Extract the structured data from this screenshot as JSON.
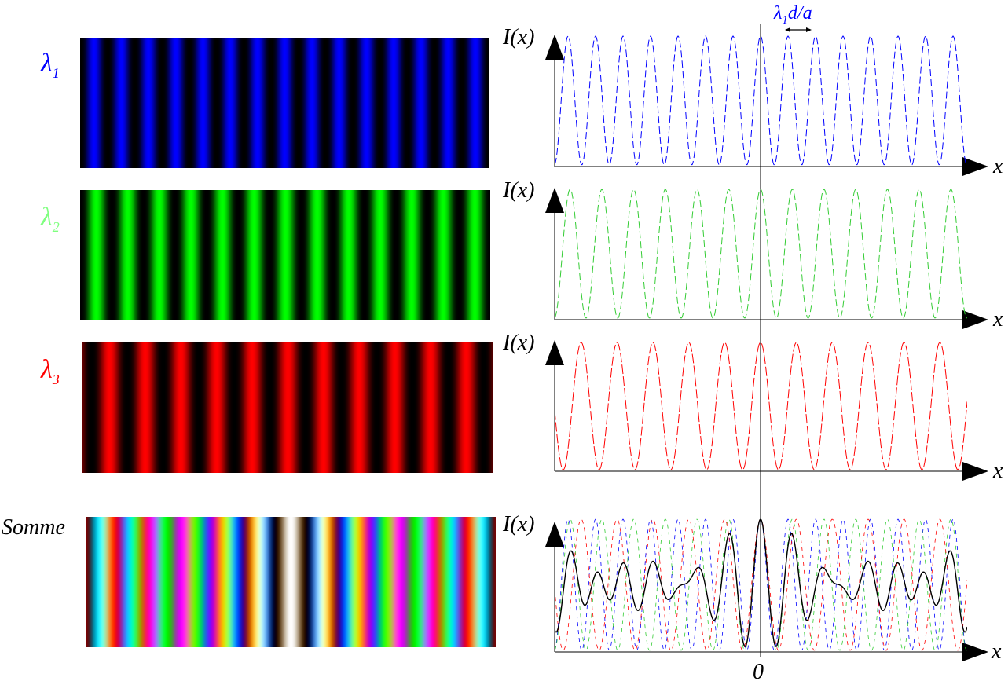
{
  "rows": [
    {
      "key": "lambda1",
      "symbol": "λ",
      "subscript": "1",
      "color": "#0000ff",
      "fringe_periods": 15.0
    },
    {
      "key": "lambda2",
      "symbol": "λ",
      "subscript": "2",
      "color": "#00ff00",
      "fringe_periods": 13.0
    },
    {
      "key": "lambda3",
      "symbol": "λ",
      "subscript": "3",
      "color": "#ff0000",
      "fringe_periods": 11.5
    }
  ],
  "sum": {
    "label": "Somme"
  },
  "plot": {
    "ylabel": "I(x)",
    "xlabel": "x",
    "origin_label": "0",
    "fringe_spacing_label_main": "λ",
    "fringe_spacing_label_sub": "1",
    "fringe_spacing_label_rest": "d/a",
    "colors": {
      "lambda1": "#0000ff",
      "lambda2": "#00cc00",
      "lambda3": "#ff0000",
      "sum": "#000000"
    }
  }
}
